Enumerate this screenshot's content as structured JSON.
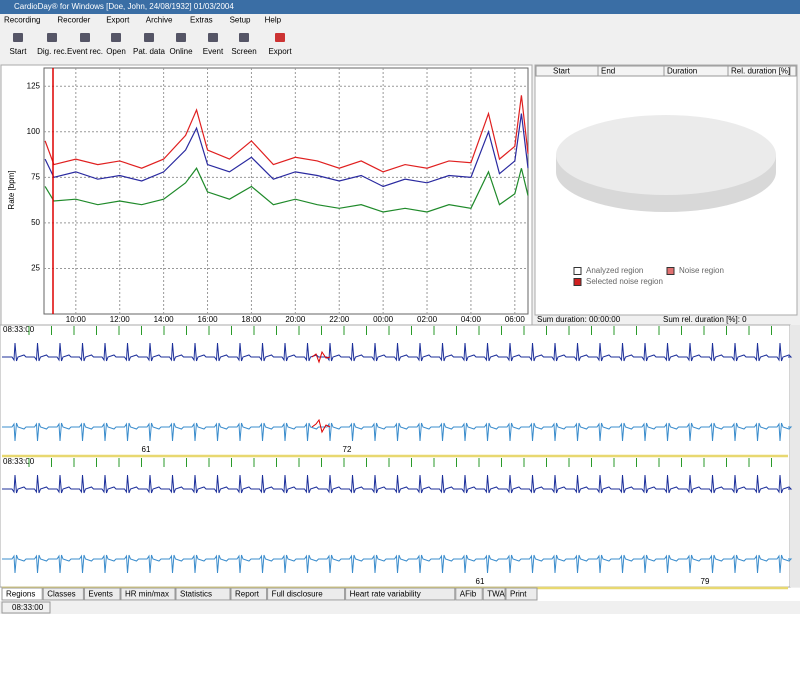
{
  "window": {
    "title": "CardioDay® for Windows [Doe, John, 24/08/1932] 01/03/2004"
  },
  "menu": [
    "Recording",
    "Recorder",
    "Export",
    "Archive",
    "Extras",
    "Setup",
    "Help"
  ],
  "toolbar": [
    "Start",
    "Dig. rec.",
    "Event rec.",
    "Open",
    "Pat. data",
    "Online",
    "Event",
    "Screen",
    "Export"
  ],
  "trend_chart": {
    "type": "line",
    "y_label": "Rate [bpm]",
    "x": [
      8.6,
      9,
      10,
      11,
      12,
      13,
      14,
      15,
      15.5,
      16,
      17,
      18,
      19,
      20,
      21,
      22,
      23,
      24,
      25,
      26,
      27,
      28,
      28.8,
      29.3,
      30,
      30.3,
      30.6
    ],
    "series": [
      {
        "color": "#e02020",
        "values": [
          95,
          82,
          85,
          82,
          84,
          80,
          85,
          98,
          112,
          90,
          85,
          95,
          82,
          86,
          84,
          80,
          84,
          78,
          82,
          80,
          84,
          83,
          110,
          85,
          92,
          120,
          88
        ]
      },
      {
        "color": "#2a2aa0",
        "values": [
          85,
          75,
          78,
          74,
          76,
          73,
          78,
          90,
          102,
          82,
          78,
          86,
          74,
          78,
          76,
          73,
          76,
          70,
          74,
          72,
          76,
          75,
          100,
          77,
          84,
          110,
          80
        ]
      },
      {
        "color": "#1f8a2a",
        "values": [
          70,
          62,
          63,
          60,
          62,
          60,
          63,
          72,
          80,
          67,
          63,
          70,
          60,
          63,
          60,
          58,
          60,
          56,
          58,
          56,
          60,
          58,
          78,
          60,
          66,
          80,
          65
        ]
      }
    ],
    "xlim": [
      8.55,
      30.6
    ],
    "xticks": [
      {
        "value": 10,
        "label": "10:00"
      },
      {
        "value": 12,
        "label": "12:00"
      },
      {
        "value": 14,
        "label": "14:00"
      },
      {
        "value": 16,
        "label": "16:00"
      },
      {
        "value": 18,
        "label": "18:00"
      },
      {
        "value": 20,
        "label": "20:00"
      },
      {
        "value": 22,
        "label": "22:00"
      },
      {
        "value": 24,
        "label": "00:00"
      },
      {
        "value": 26,
        "label": "02:00"
      },
      {
        "value": 28,
        "label": "04:00"
      },
      {
        "value": 30,
        "label": "06:00"
      }
    ],
    "ylim": [
      0,
      135
    ],
    "yticks": [
      25,
      50,
      75,
      100,
      125
    ],
    "grid": true
  },
  "region_table": {
    "columns": [
      "Start",
      "End",
      "Duration",
      "Rel. duration [%]"
    ],
    "legend": [
      "Analyzed region",
      "Noise region",
      "Selected noise region"
    ],
    "sum_duration": "Sum duration: 00:00:00",
    "sum_rel_duration": "Sum rel. duration [%]: 0"
  },
  "ecg": {
    "strips": [
      {
        "time": "08:33:00",
        "labels": [
          "61",
          "72"
        ]
      },
      {
        "time": "08:33:00",
        "labels": [
          "61",
          "79"
        ]
      }
    ]
  },
  "tabs": [
    "Regions",
    "Classes",
    "Events",
    "HR min/max",
    "Statistics",
    "Report",
    "Full disclosure",
    "Heart rate variability",
    "AFib",
    "TWA",
    "Print"
  ],
  "status": {
    "time": "08:33:00"
  }
}
